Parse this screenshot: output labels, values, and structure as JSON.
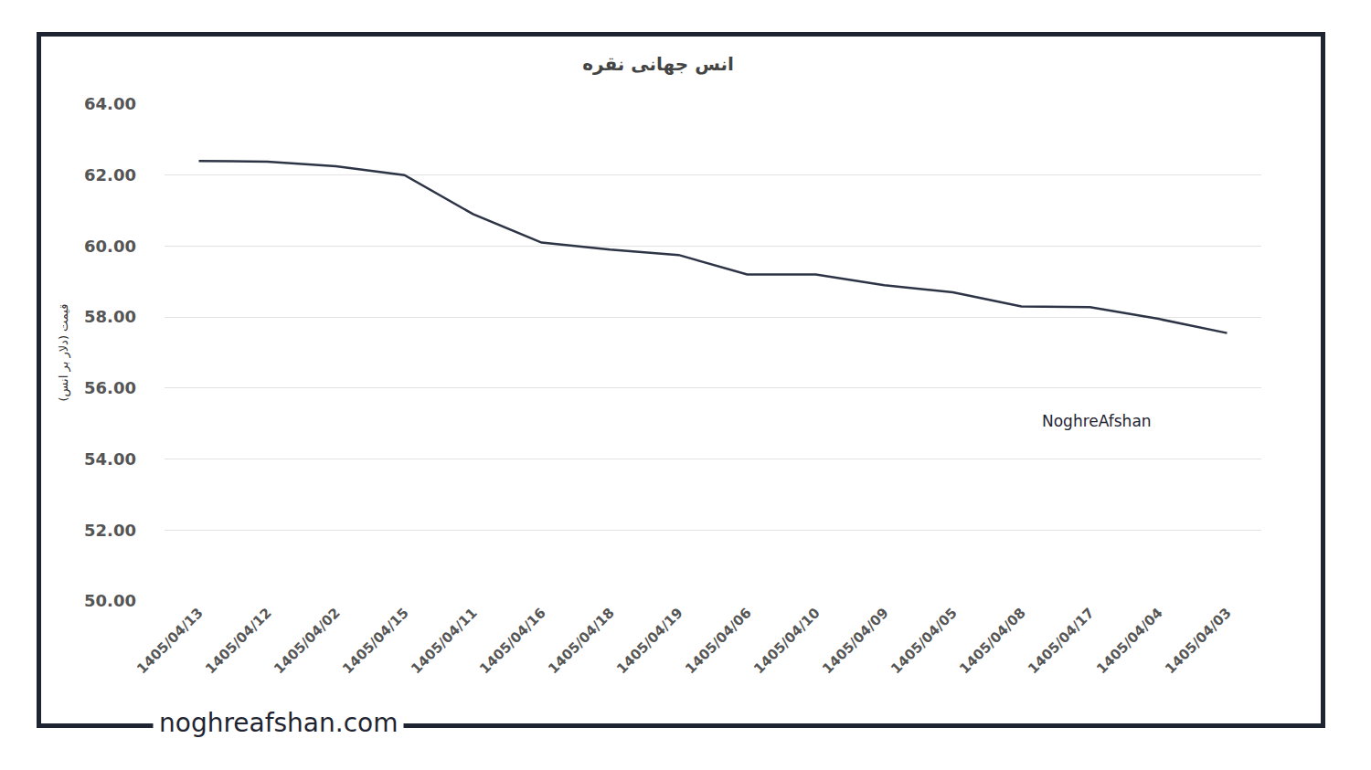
{
  "chart_data": {
    "type": "line",
    "title": "انس جهانی نقره",
    "y_label": "قیمت (دلار بر انس)",
    "categories": [
      "1405/04/13",
      "1405/04/12",
      "1405/04/02",
      "1405/04/15",
      "1405/04/11",
      "1405/04/16",
      "1405/04/18",
      "1405/04/19",
      "1405/04/06",
      "1405/04/10",
      "1405/04/09",
      "1405/04/05",
      "1405/04/08",
      "1405/04/17",
      "1405/04/04",
      "1405/04/03"
    ],
    "values": [
      62.4,
      62.38,
      62.25,
      62.0,
      60.9,
      60.1,
      59.9,
      59.75,
      59.2,
      59.2,
      58.9,
      58.7,
      58.3,
      58.28,
      57.95,
      57.55
    ],
    "color": "#2d3446",
    "ylim": [
      50,
      64
    ],
    "yticks": [
      {
        "value": 50,
        "label": "50.00"
      },
      {
        "value": 52,
        "label": "52.00"
      },
      {
        "value": 54,
        "label": "54.00"
      },
      {
        "value": 56,
        "label": "56.00"
      },
      {
        "value": 58,
        "label": "58.00"
      },
      {
        "value": 60,
        "label": "60.00"
      },
      {
        "value": 62,
        "label": "62.00"
      },
      {
        "value": 64,
        "label": "64.00"
      }
    ],
    "grid": true,
    "annotations": [
      "NoghreAfshan",
      "noghreafshan.com"
    ]
  }
}
